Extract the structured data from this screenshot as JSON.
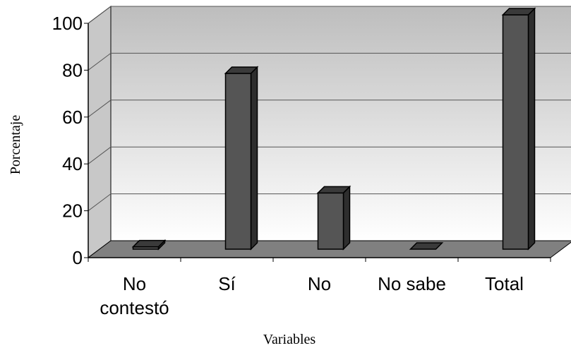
{
  "chart_data": {
    "type": "bar",
    "title": "",
    "xlabel": "Variables",
    "ylabel": "Porcentaje",
    "categories": [
      "No contestó",
      "Sí",
      "No",
      "No sabe",
      "Total"
    ],
    "category_lines": [
      [
        "No",
        "contestó"
      ],
      [
        "Sí"
      ],
      [
        "No"
      ],
      [
        "No sabe"
      ],
      [
        "Total"
      ]
    ],
    "values": [
      1,
      75,
      24,
      0,
      100
    ],
    "ylim": [
      0,
      100
    ],
    "yticks": [
      "0",
      "20",
      "40",
      "60",
      "80",
      "100"
    ],
    "grid": true,
    "legend": "none",
    "bar_color": "#555555",
    "floor_color": "#808080"
  }
}
